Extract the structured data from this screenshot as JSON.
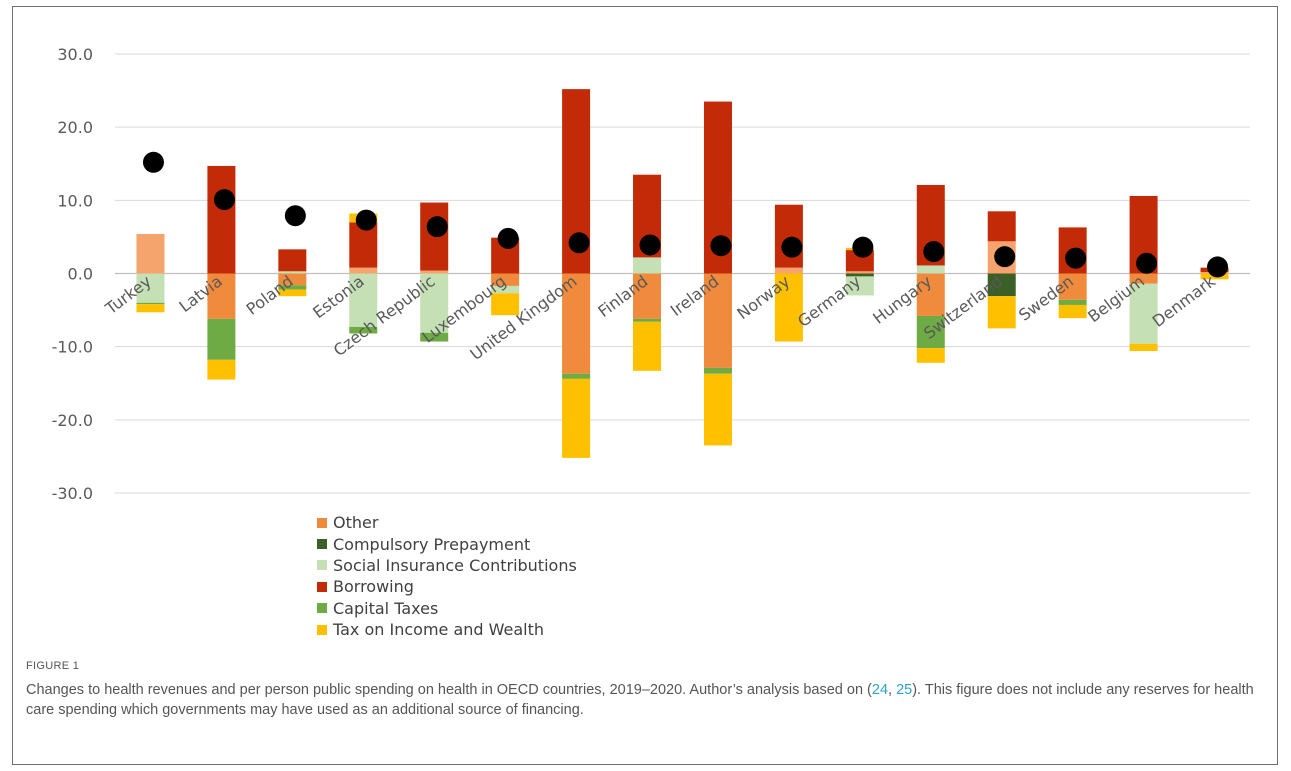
{
  "chart_data": {
    "type": "bar",
    "stacked": true,
    "title": "",
    "xlabel": "",
    "ylabel": "",
    "ylim": [
      -30,
      30
    ],
    "yticks": [
      30.0,
      20.0,
      10.0,
      0.0,
      -10.0,
      -20.0,
      -30.0
    ],
    "ytick_labels": [
      "30.0",
      "20.0",
      "10.0",
      "0.0",
      "-10.0",
      "-20.0",
      "-30.0"
    ],
    "grid": true,
    "legend_position": "bottom-left",
    "categories": [
      "Turkey",
      "Latvia",
      "Poland",
      "Estonia",
      "Czech Republic",
      "Luxembourg",
      "United Kingdom",
      "Finland",
      "Ireland",
      "Norway",
      "Germany",
      "Hungary",
      "Switzerland",
      "Sweden",
      "Belgium",
      "Denmark"
    ],
    "series": [
      {
        "name": "Other",
        "color": "#f08a3c",
        "light_color": "#f4a46c",
        "values": [
          5.4,
          -6.2,
          -1.6,
          0.8,
          0.4,
          -1.7,
          -13.7,
          -6.2,
          -12.9,
          0.8,
          0.3,
          -5.8,
          4.4,
          -3.6,
          -1.4,
          0.2
        ]
      },
      {
        "name": "Compulsory Prepayment",
        "color": "#3a5f27",
        "values": [
          0,
          0,
          0,
          0,
          0,
          0,
          0,
          0,
          0,
          0,
          -0.4,
          0,
          -3.1,
          0,
          0,
          0
        ]
      },
      {
        "name": "Social Insurance Contributions",
        "color": "#c4e0b4",
        "values": [
          -4.0,
          0,
          0.3,
          -7.3,
          -8.1,
          -1.0,
          0,
          2.2,
          0,
          0,
          -2.6,
          1.1,
          0,
          0,
          -8.2,
          0
        ]
      },
      {
        "name": "Borrowing",
        "color": "#c32b08",
        "values": [
          0,
          14.7,
          3.0,
          6.2,
          9.3,
          4.9,
          25.2,
          11.3,
          23.5,
          8.6,
          2.9,
          11.0,
          4.1,
          6.3,
          10.6,
          0.6
        ]
      },
      {
        "name": "Capital Taxes",
        "color": "#6fab45",
        "values": [
          -0.2,
          -5.6,
          -0.6,
          -0.9,
          -1.2,
          0,
          -0.7,
          -0.4,
          -0.8,
          0,
          0,
          -4.4,
          0,
          -0.7,
          0,
          0
        ]
      },
      {
        "name": "Tax on Income and Wealth",
        "color": "#ffc000",
        "values": [
          -1.1,
          -2.7,
          -0.9,
          1.2,
          0,
          -3.0,
          -10.8,
          -6.7,
          -9.8,
          -9.3,
          0.3,
          -2.0,
          -4.4,
          -1.8,
          -1.0,
          -0.8
        ]
      }
    ],
    "points": {
      "values": [
        15.2,
        10.1,
        7.9,
        7.3,
        6.4,
        4.8,
        4.2,
        3.9,
        3.8,
        3.6,
        3.6,
        3.0,
        2.3,
        2.1,
        1.4,
        0.9
      ],
      "color": "#000000"
    }
  },
  "legend": {
    "items": [
      {
        "label": "Other",
        "color": "#f08a3c"
      },
      {
        "label": "Compulsory Prepayment",
        "color": "#3a5f27"
      },
      {
        "label": "Social Insurance Contributions",
        "color": "#c4e0b4"
      },
      {
        "label": "Borrowing",
        "color": "#c32b08"
      },
      {
        "label": "Capital Taxes",
        "color": "#6fab45"
      },
      {
        "label": "Tax on Income and Wealth",
        "color": "#ffc000"
      }
    ]
  },
  "figure": {
    "label": "FIGURE 1",
    "caption_part1": "Changes to health revenues and per person public spending on health in OECD countries, 2019–2020. Author’s analysis based on (",
    "ref1": "24",
    "caption_sep": ", ",
    "ref2": "25",
    "caption_part2": "). This figure does not include any reserves for health care spending which governments may have used as an additional source of financing."
  }
}
